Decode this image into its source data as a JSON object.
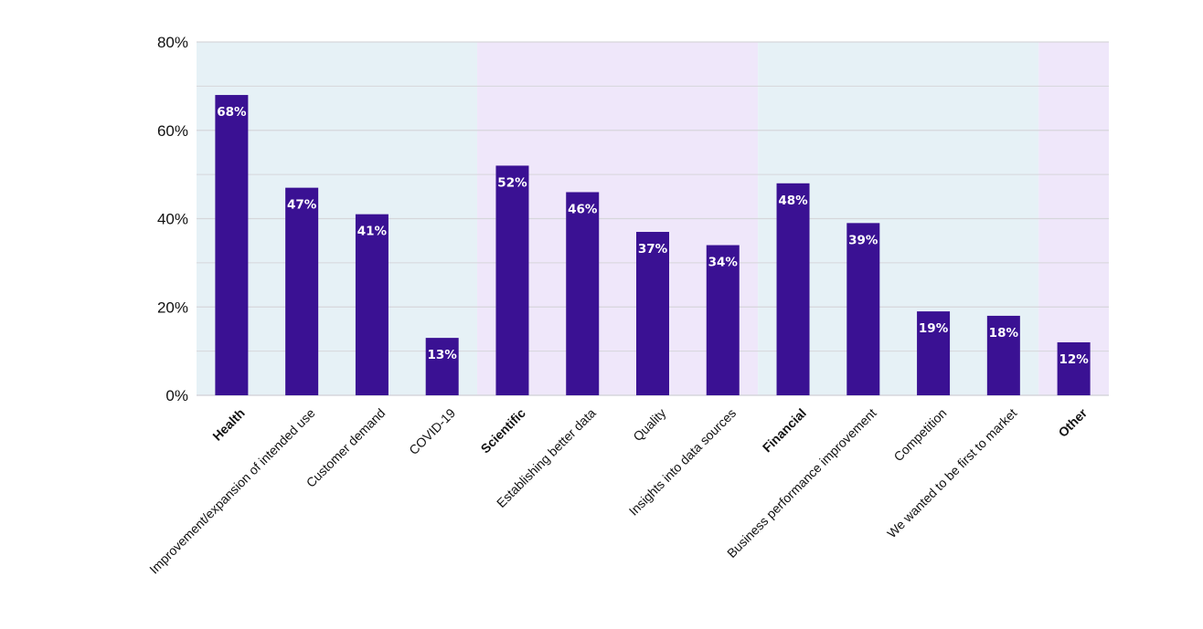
{
  "chart_data": {
    "type": "bar",
    "title": "",
    "xlabel": "",
    "ylabel": "",
    "ylim": [
      0,
      80
    ],
    "y_ticks": [
      "0%",
      "20%",
      "40%",
      "60%",
      "80%"
    ],
    "y_tick_values": [
      0,
      20,
      40,
      60,
      80
    ],
    "grid": true,
    "categories": [
      "Health",
      "Improvement/expansion of intended use",
      "Customer demand",
      "COVID-19",
      "Scientific",
      "Establishing better data",
      "Quality",
      "Insights into data sources",
      "Financial",
      "Business performance improvement",
      "Competition",
      "We wanted to be first to market",
      "Other"
    ],
    "group_headers": [
      "Health",
      "Scientific",
      "Financial",
      "Other"
    ],
    "values": [
      68,
      47,
      41,
      13,
      52,
      46,
      37,
      34,
      48,
      39,
      19,
      18,
      12
    ],
    "value_labels": [
      "68%",
      "47%",
      "41%",
      "13%",
      "52%",
      "46%",
      "37%",
      "34%",
      "48%",
      "39%",
      "19%",
      "18%",
      "12%"
    ],
    "background_bands": [
      {
        "group": "Health",
        "from_index": 0,
        "to_index": 3,
        "color": "#e6f1f6"
      },
      {
        "group": "Scientific",
        "from_index": 4,
        "to_index": 7,
        "color": "#efe7fa"
      },
      {
        "group": "Financial",
        "from_index": 8,
        "to_index": 11,
        "color": "#e6f1f6"
      },
      {
        "group": "Other",
        "from_index": 12,
        "to_index": 12,
        "color": "#efe7fa"
      }
    ],
    "colors": {
      "bar": "#3a1193",
      "gridline": "#d6d6db",
      "axis_text": "#111111",
      "bar_label": "#ffffff"
    }
  }
}
